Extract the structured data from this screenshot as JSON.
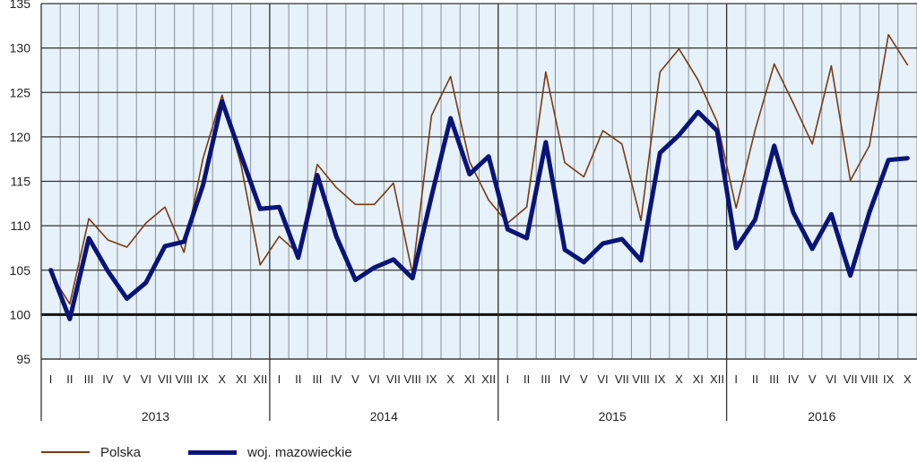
{
  "chart_data": {
    "type": "line",
    "title": "",
    "xlabel": "",
    "ylabel": "",
    "ylim": [
      95,
      135
    ],
    "yticks": [
      95,
      100,
      105,
      110,
      115,
      120,
      125,
      130,
      135
    ],
    "reference_line": 100,
    "grid": true,
    "years": [
      "2013",
      "2014",
      "2015",
      "2016"
    ],
    "months": [
      "I",
      "II",
      "III",
      "IV",
      "V",
      "VI",
      "VII",
      "VIII",
      "IX",
      "X",
      "XI",
      "XII"
    ],
    "x": [
      "I",
      "II",
      "III",
      "IV",
      "V",
      "VI",
      "VII",
      "VIII",
      "IX",
      "X",
      "XI",
      "XII",
      "I",
      "II",
      "III",
      "IV",
      "V",
      "VI",
      "VII",
      "VIII",
      "IX",
      "X",
      "XI",
      "XII",
      "I",
      "II",
      "III",
      "IV",
      "V",
      "VI",
      "VII",
      "VIII",
      "IX",
      "X",
      "XI",
      "XII",
      "I",
      "II",
      "III",
      "IV",
      "V",
      "VI",
      "VII",
      "VIII",
      "IX",
      "X"
    ],
    "series": [
      {
        "name": "Polska",
        "color": "#7a3b12",
        "values": [
          104.6,
          101.2,
          110.8,
          108.4,
          107.6,
          110.3,
          112.1,
          107.0,
          117.6,
          124.7,
          116.8,
          105.6,
          108.8,
          106.9,
          116.9,
          114.3,
          112.4,
          112.4,
          114.8,
          104.6,
          122.4,
          126.8,
          117.2,
          112.9,
          110.3,
          112.1,
          127.3,
          117.1,
          115.5,
          120.7,
          119.2,
          110.6,
          127.3,
          129.9,
          126.4,
          121.7,
          112.0,
          120.8,
          128.2,
          123.8,
          119.2,
          128.0,
          115.1,
          119.0,
          131.5,
          128.1
        ]
      },
      {
        "name": "woj. mazowieckie",
        "color": "#0a1477",
        "values": [
          105.0,
          99.5,
          108.6,
          104.9,
          101.8,
          103.6,
          107.7,
          108.2,
          114.6,
          124.0,
          117.9,
          111.9,
          112.1,
          106.4,
          115.7,
          108.8,
          103.9,
          105.3,
          106.2,
          104.1,
          113.3,
          122.1,
          115.8,
          117.8,
          109.6,
          108.6,
          119.4,
          107.3,
          105.9,
          108.0,
          108.5,
          106.1,
          118.2,
          120.2,
          122.8,
          120.7,
          107.5,
          110.7,
          119.0,
          111.5,
          107.4,
          111.3,
          104.4,
          111.5,
          117.4,
          117.6
        ]
      }
    ]
  }
}
